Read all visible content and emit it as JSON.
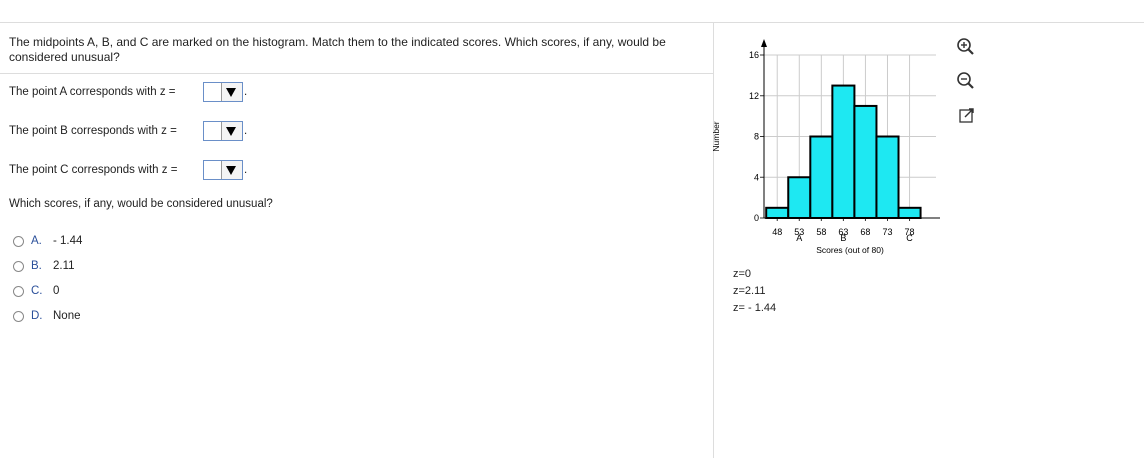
{
  "question": {
    "text": "The midpoints A, B, and C are marked on the histogram. Match them to the indicated scores. Which scores, if any, would be considered unusual?",
    "rows": [
      {
        "before": "The point A corresponds with z =",
        "after": "."
      },
      {
        "before": "The point B corresponds with z =",
        "after": "."
      },
      {
        "before": "The point C corresponds with z =",
        "after": "."
      }
    ],
    "unusual_prompt": "Which scores, if any, would be considered unusual?",
    "options": [
      {
        "letter": "A.",
        "text": "- 1.44"
      },
      {
        "letter": "B.",
        "text": "2.11"
      },
      {
        "letter": "C.",
        "text": "0"
      },
      {
        "letter": "D.",
        "text": "None"
      }
    ]
  },
  "chart_data": {
    "type": "histogram",
    "xlabel": "Scores (out of 80)",
    "ylabel": "Number",
    "bins": [
      45.5,
      50.5,
      55.5,
      60.5,
      65.5,
      70.5,
      75.5,
      80.5
    ],
    "values": [
      1,
      4,
      8,
      13,
      11,
      8,
      1
    ],
    "color": "#1ee8f2",
    "xlim": [
      45,
      84
    ],
    "ylim": [
      0,
      16
    ],
    "xticks": [
      48,
      53,
      58,
      63,
      68,
      73,
      78
    ],
    "yticks": [
      0,
      4,
      8,
      12,
      16
    ],
    "grid": true,
    "annotations": [
      {
        "text": "A",
        "x": 53
      },
      {
        "text": "B",
        "x": 63
      },
      {
        "text": "C",
        "x": 78
      }
    ]
  },
  "answer_choices": [
    "z=0",
    "z=2.11",
    "z= - 1.44"
  ]
}
